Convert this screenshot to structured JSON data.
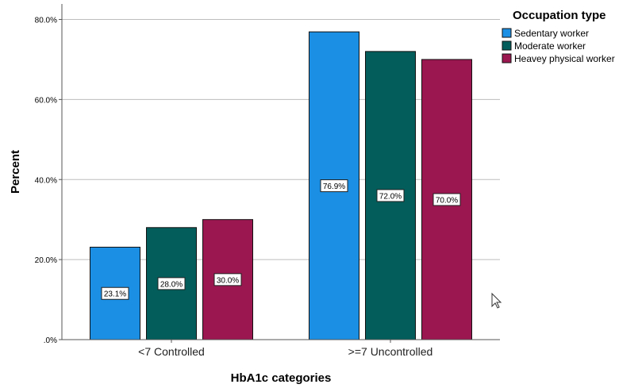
{
  "chart_data": {
    "type": "bar",
    "categories": [
      "<7 Controlled",
      ">=7 Uncontrolled"
    ],
    "series": [
      {
        "name": "Sedentary worker",
        "values": [
          23.1,
          76.9
        ],
        "labels": [
          "23.1%",
          "76.9%"
        ],
        "color": "#1a8fe3"
      },
      {
        "name": "Moderate worker",
        "values": [
          28.0,
          72.0
        ],
        "labels": [
          "28.0%",
          "72.0%"
        ],
        "color": "#035e5b"
      },
      {
        "name": "Heavey physical worker",
        "values": [
          30.0,
          70.0
        ],
        "labels": [
          "30.0%",
          "70.0%"
        ],
        "color": "#9b1750"
      }
    ],
    "xlabel": "HbA1c categories",
    "ylabel": "Percent",
    "ylim": [
      0,
      80
    ],
    "yticks": [
      0,
      20,
      40,
      60,
      80
    ],
    "ytick_labels": [
      ".0%",
      "20.0%",
      "40.0%",
      "60.0%",
      "80.0%"
    ],
    "grid": true,
    "legend": {
      "title": "Occupation type",
      "placement": "top-right"
    }
  }
}
